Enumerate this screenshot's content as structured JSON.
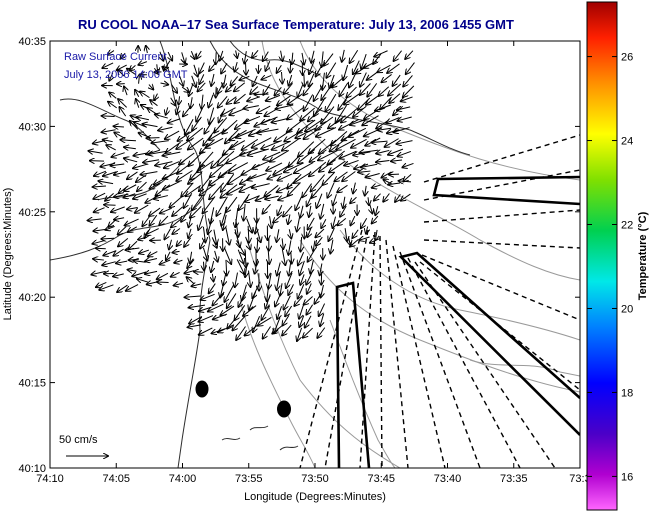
{
  "title": "RU COOL  NOAA–17  Sea Surface Temperature:  July 13, 2006 1455 GMT",
  "legend_text": {
    "line1": "Raw Surface Current",
    "line2": "July 13, 2006 14:00 GMT"
  },
  "scale_label": "50 cm/s",
  "axes": {
    "xlabel": "Longitude (Degrees:Minutes)",
    "ylabel": "Latitude (Degrees:Minutes)",
    "x_ticks": [
      "74:10",
      "74:05",
      "74:00",
      "73:55",
      "73:50",
      "73:45",
      "73:40",
      "73:35",
      "73:3"
    ],
    "y_ticks": [
      "40:35",
      "40:30",
      "40:25",
      "40:20",
      "40:15",
      "40:10"
    ]
  },
  "colorbar": {
    "label": "Temperature (°C)",
    "ticks": [
      "26",
      "24",
      "22",
      "20",
      "18",
      "16"
    ],
    "range": [
      15.2,
      27.3
    ]
  },
  "colors": {
    "title": "#00008b",
    "legend_text": "#1a1aa8",
    "land_outline": "#2f2f2f",
    "contour": "#9a9a9a"
  }
}
